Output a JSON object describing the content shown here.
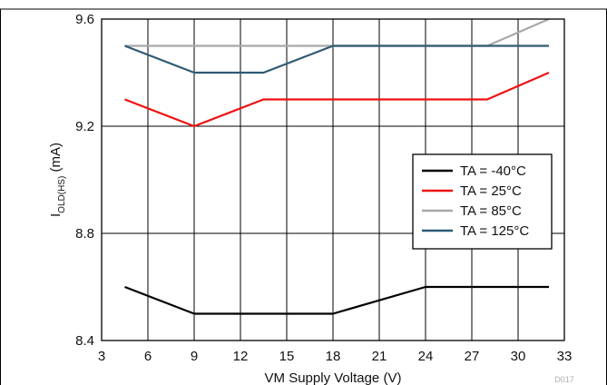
{
  "chart_data": {
    "type": "line",
    "title": "",
    "xlabel": "VM Supply Voltage (V)",
    "ylabel": {
      "main": "I",
      "sub": "OLD(HS)",
      "unit": " (mA)"
    },
    "xlim": [
      3,
      33
    ],
    "ylim": [
      8.4,
      9.6
    ],
    "xticks": [
      3,
      6,
      9,
      12,
      15,
      18,
      21,
      24,
      27,
      30,
      33
    ],
    "yticks": [
      8.4,
      8.8,
      9.2,
      9.6
    ],
    "xtick_labels": [
      "3",
      "6",
      "9",
      "12",
      "15",
      "18",
      "21",
      "24",
      "27",
      "30",
      "33"
    ],
    "ytick_labels": [
      "8.4",
      "8.8",
      "9.2",
      "9.6"
    ],
    "grid": true,
    "legend_position": "right",
    "figure_id": "D017",
    "series": [
      {
        "name": "TA = -40°C",
        "color": "#000000",
        "x": [
          4.5,
          9,
          13.5,
          18,
          24,
          28,
          32
        ],
        "y": [
          8.6,
          8.5,
          8.5,
          8.5,
          8.6,
          8.6,
          8.6
        ]
      },
      {
        "name": "TA = 25°C",
        "color": "#ee1111",
        "x": [
          4.5,
          9,
          13.5,
          18,
          24,
          28,
          32
        ],
        "y": [
          9.3,
          9.2,
          9.3,
          9.3,
          9.3,
          9.3,
          9.4
        ]
      },
      {
        "name": "TA = 85°C",
        "color": "#a8a8a8",
        "x": [
          4.5,
          9,
          13.5,
          18,
          24,
          28,
          32
        ],
        "y": [
          9.5,
          9.5,
          9.5,
          9.5,
          9.5,
          9.5,
          9.6
        ]
      },
      {
        "name": "TA = 125°C",
        "color": "#2e5a74",
        "x": [
          4.5,
          9,
          13.5,
          18,
          24,
          28,
          32
        ],
        "y": [
          9.5,
          9.4,
          9.4,
          9.5,
          9.5,
          9.5,
          9.5
        ]
      }
    ]
  }
}
